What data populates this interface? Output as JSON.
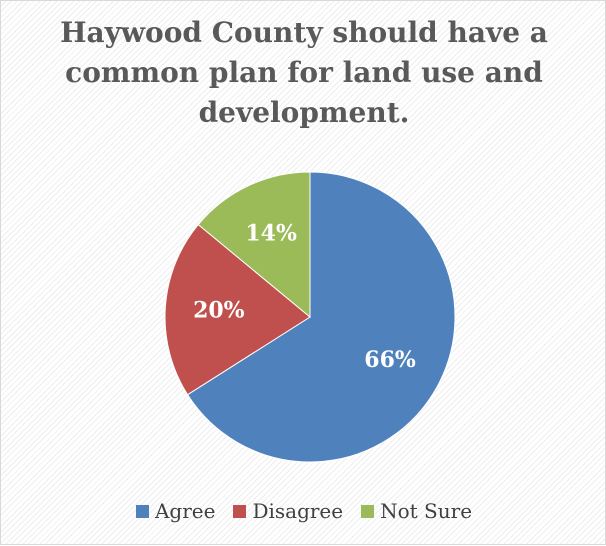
{
  "chart_data": {
    "type": "pie",
    "title": "Haywood County should have a common plan for land use and development.",
    "categories": [
      "Agree",
      "Disagree",
      "Not Sure"
    ],
    "values": [
      66,
      20,
      14
    ],
    "value_labels": [
      "66%",
      "20%",
      "14%"
    ],
    "colors": [
      "#4F81BD",
      "#C0504D",
      "#9BBB59"
    ],
    "label_color": "#ffffff",
    "legend": "bottom"
  }
}
